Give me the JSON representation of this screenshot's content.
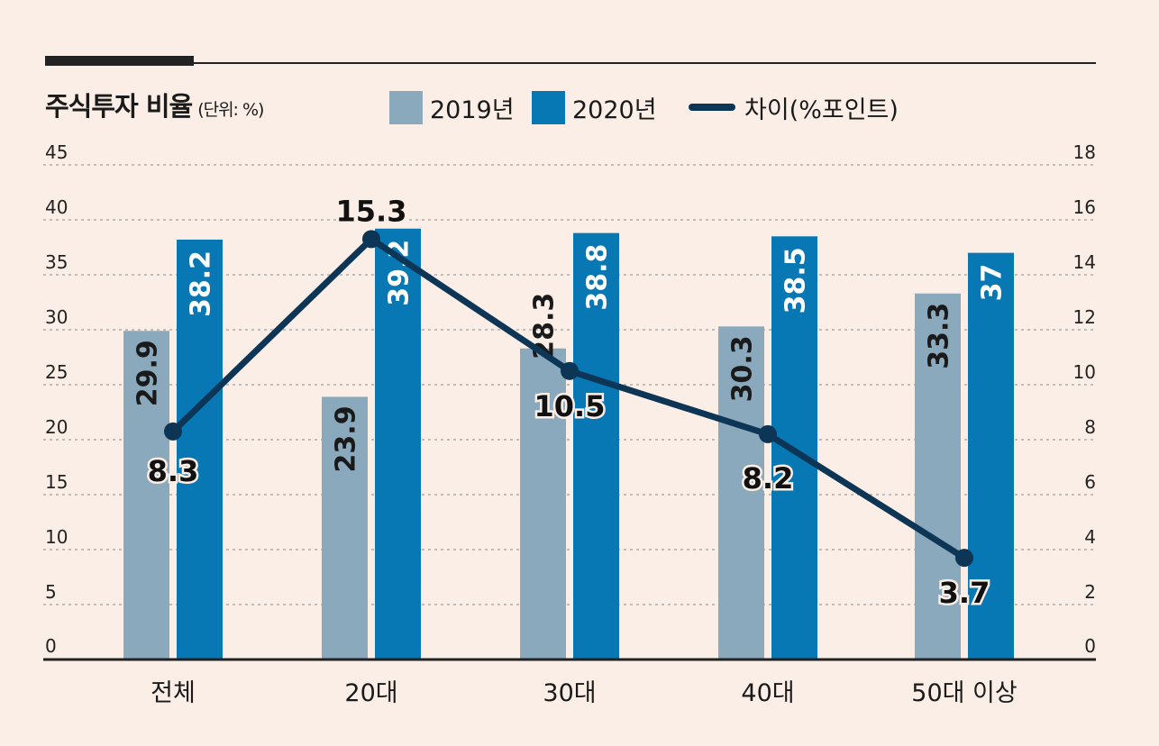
{
  "chart_data": {
    "type": "bar",
    "title": "주식투자 비율",
    "unit": "(단위: %)",
    "categories": [
      "전체",
      "20대",
      "30대",
      "40대",
      "50대 이상"
    ],
    "series": [
      {
        "name": "2019년",
        "kind": "bar",
        "axis": "left",
        "color": "#8aa9bd",
        "values": [
          29.9,
          23.9,
          28.3,
          30.3,
          33.3
        ]
      },
      {
        "name": "2020년",
        "kind": "bar",
        "axis": "left",
        "color": "#0878b4",
        "values": [
          38.2,
          39.2,
          38.8,
          38.5,
          37
        ]
      },
      {
        "name": "차이(%포인트)",
        "kind": "line",
        "axis": "right",
        "color": "#0c3556",
        "values": [
          8.3,
          15.3,
          10.5,
          8.2,
          3.7
        ]
      }
    ],
    "y_left": {
      "min": 0,
      "max": 45,
      "ticks": [
        "0",
        "5",
        "10",
        "15",
        "20",
        "25",
        "30",
        "35",
        "40",
        "45"
      ]
    },
    "y_right": {
      "min": 0,
      "max": 18,
      "ticks": [
        "0",
        "2",
        "4",
        "6",
        "8",
        "10",
        "12",
        "14",
        "16",
        "18"
      ]
    },
    "bar_labels_2019": [
      "29.9",
      "23.9",
      "28.3",
      "30.3",
      "33.3"
    ],
    "bar_labels_2020": [
      "38.2",
      "39.2",
      "38.8",
      "38.5",
      "37"
    ],
    "line_labels": [
      "8.3",
      "15.3",
      "10.5",
      "8.2",
      "3.7"
    ],
    "grid": "dotted-horizontal",
    "legend_position": "top"
  },
  "colors": {
    "background": "#fbeee6",
    "axis": "#222222",
    "grid": "#a0a0a0",
    "bar_label": "#1a1a1a",
    "bar_label_on_dark": "#ffffff"
  }
}
